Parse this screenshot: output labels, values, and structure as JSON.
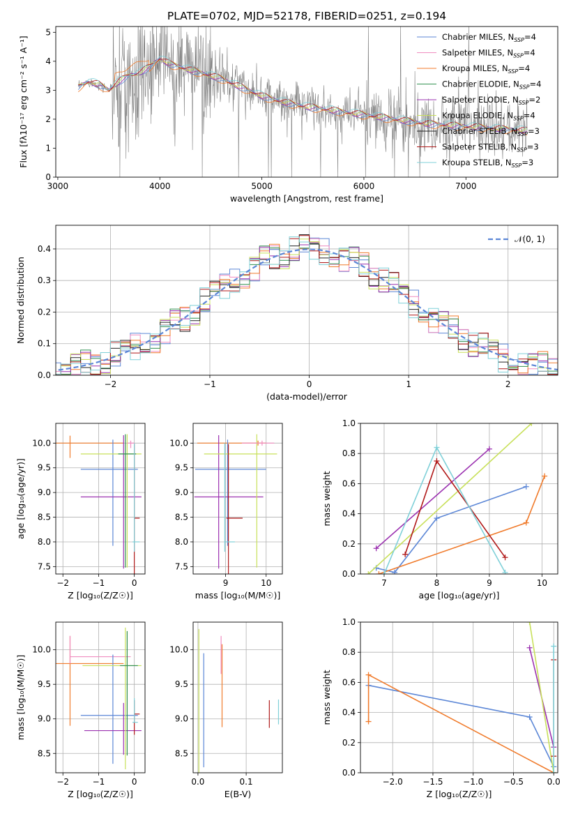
{
  "title": "PLATE=0702, MJD=52178, FIBERID=0251, z=0.194",
  "colors": {
    "chabrier_miles": "#5b86d6",
    "salpeter_miles": "#f08cc0",
    "kroupa_miles": "#f07a2a",
    "chabrier_elodie": "#2f8f4f",
    "salpeter_elodie": "#9b30b0",
    "kroupa_elodie": "#c8e05a",
    "chabrier_stelib": "#222222",
    "salpeter_stelib": "#b01818",
    "kroupa_stelib": "#7fd0d8",
    "data": "#808080"
  },
  "chart_data": [
    {
      "id": "spectrum",
      "type": "line",
      "xlabel": "wavelength [Angstrom, rest frame]",
      "ylabel": "Flux [fλ10⁻¹⁷ erg cm⁻² s⁻¹ A⁻¹]",
      "xlim": [
        2980,
        7900
      ],
      "ylim": [
        0,
        5.2
      ],
      "xticks": [
        3000,
        4000,
        5000,
        6000,
        7000
      ],
      "yticks": [
        0,
        1,
        2,
        3,
        4,
        5
      ],
      "legend_position": "top-right",
      "legend": [
        {
          "key": "chabrier_miles",
          "label": "Chabrier MILES, N",
          "sub": "SSP",
          "suffix": "=4"
        },
        {
          "key": "salpeter_miles",
          "label": "Salpeter MILES, N",
          "sub": "SSP",
          "suffix": "=4"
        },
        {
          "key": "kroupa_miles",
          "label": "Kroupa MILES, N",
          "sub": "SSP",
          "suffix": "=4"
        },
        {
          "key": "chabrier_elodie",
          "label": "Chabrier ELODIE, N",
          "sub": "SSP",
          "suffix": "=4"
        },
        {
          "key": "salpeter_elodie",
          "label": "Salpeter ELODIE, N",
          "sub": "SSP",
          "suffix": "=2"
        },
        {
          "key": "kroupa_elodie",
          "label": "Kroupa ELODIE, N",
          "sub": "SSP",
          "suffix": "=4"
        },
        {
          "key": "chabrier_stelib",
          "label": "Chabrier STELIB, N",
          "sub": "SSP",
          "suffix": "=3"
        },
        {
          "key": "salpeter_stelib",
          "label": "Salpeter STELIB, N",
          "sub": "SSP",
          "suffix": "=3"
        },
        {
          "key": "kroupa_stelib",
          "label": "Kroupa STELIB, N",
          "sub": "SSP",
          "suffix": "=3"
        }
      ],
      "continuum": [
        [
          3200,
          3.1
        ],
        [
          3300,
          3.3
        ],
        [
          3400,
          3.2
        ],
        [
          3500,
          3.0
        ],
        [
          3600,
          3.3
        ],
        [
          3700,
          3.5
        ],
        [
          3800,
          3.6
        ],
        [
          3900,
          3.8
        ],
        [
          4000,
          4.1
        ],
        [
          4100,
          3.9
        ],
        [
          4200,
          3.8
        ],
        [
          4400,
          3.6
        ],
        [
          4600,
          3.4
        ],
        [
          4800,
          3.1
        ],
        [
          5000,
          2.8
        ],
        [
          5200,
          2.6
        ],
        [
          5400,
          2.45
        ],
        [
          5600,
          2.35
        ],
        [
          5800,
          2.25
        ],
        [
          6000,
          2.15
        ],
        [
          6200,
          2.05
        ],
        [
          6400,
          1.95
        ],
        [
          6600,
          1.85
        ],
        [
          6800,
          1.8
        ],
        [
          7000,
          1.75
        ],
        [
          7200,
          1.7
        ],
        [
          7400,
          1.65
        ],
        [
          7600,
          1.6
        ]
      ]
    },
    {
      "id": "residuals",
      "type": "histogram",
      "xlabel": "(data-model)/error",
      "ylabel": "Normed distribution",
      "xlim": [
        -2.55,
        2.5
      ],
      "ylim": [
        0,
        0.475
      ],
      "xticks": [
        -2,
        -1,
        0,
        1,
        2
      ],
      "yticks": [
        0.0,
        0.1,
        0.2,
        0.3,
        0.4
      ],
      "legend_position": "top-right",
      "gaussian_label": "𝒩(0, 1)",
      "bin_width": 0.1
    },
    {
      "id": "age_vs_Z",
      "type": "errorbar",
      "xlabel": "Z [log₁₀(Z/Z☉)]",
      "ylabel": "age  [log₁₀(age/yr)]",
      "xlim": [
        -2.2,
        0.3
      ],
      "ylim": [
        7.35,
        10.4
      ],
      "xticks": [
        -2,
        -1,
        0
      ],
      "yticks": [
        7.5,
        8.0,
        8.5,
        9.0,
        9.5,
        10.0
      ],
      "points": [
        {
          "key": "kroupa_miles",
          "x": -1.8,
          "xerr": [
            0.5,
            1.5
          ],
          "y": 10.0,
          "yerr": [
            0.3,
            0.15
          ]
        },
        {
          "key": "chabrier_miles",
          "x": -0.6,
          "xerr": [
            0.9,
            0.7
          ],
          "y": 9.47,
          "yerr": [
            1.55,
            0.6
          ]
        },
        {
          "key": "salpeter_elodie",
          "x": -0.3,
          "xerr": [
            1.2,
            0.5
          ],
          "y": 8.91,
          "yerr": [
            1.45,
            1.25
          ]
        },
        {
          "key": "kroupa_elodie",
          "x": -0.2,
          "xerr": [
            1.3,
            0.4
          ],
          "y": 9.78,
          "yerr": [
            2.3,
            0.4
          ]
        },
        {
          "key": "chabrier_elodie",
          "x": -0.25,
          "xerr": [
            0.2,
            0.3
          ],
          "y": 9.78,
          "yerr": [
            2.3,
            0.4
          ]
        },
        {
          "key": "salpeter_stelib",
          "x": 0.0,
          "xerr": [
            0.0,
            0.15
          ],
          "y": 8.48,
          "yerr": [
            1.5,
            1.5
          ]
        },
        {
          "key": "kroupa_stelib",
          "x": 0.0,
          "xerr": [
            0.05,
            0.15
          ],
          "y": 8.0,
          "yerr": [
            0.2,
            2.0
          ]
        },
        {
          "key": "salpeter_miles",
          "x": -0.1,
          "xerr": [
            0.1,
            0.1
          ],
          "y": 10.0,
          "yerr": [
            0.1,
            0.05
          ]
        }
      ]
    },
    {
      "id": "age_vs_mass",
      "type": "errorbar",
      "xlabel": "mass [log₁₀(M/M☉)]",
      "ylabel": "",
      "xlim": [
        8.2,
        10.4
      ],
      "ylim": [
        7.35,
        10.4
      ],
      "xticks": [
        9,
        10
      ],
      "yticks": [
        7.5,
        8.0,
        8.5,
        9.0,
        9.5,
        10.0
      ],
      "points": [
        {
          "key": "kroupa_miles",
          "x": 9.8,
          "xerr": [
            1.5,
            0.2
          ],
          "y": 10.0,
          "yerr": [
            0.05,
            0.05
          ]
        },
        {
          "key": "chabrier_miles",
          "x": 9.05,
          "xerr": [
            0.8,
            0.95
          ],
          "y": 9.47,
          "yerr": [
            1.55,
            0.6
          ]
        },
        {
          "key": "salpeter_elodie",
          "x": 8.83,
          "xerr": [
            0.6,
            1.1
          ],
          "y": 8.91,
          "yerr": [
            1.45,
            1.25
          ]
        },
        {
          "key": "kroupa_elodie",
          "x": 9.77,
          "xerr": [
            1.3,
            0.5
          ],
          "y": 9.78,
          "yerr": [
            2.3,
            0.4
          ]
        },
        {
          "key": "salpeter_stelib",
          "x": 9.07,
          "xerr": [
            0.05,
            0.35
          ],
          "y": 8.48,
          "yerr": [
            1.5,
            1.5
          ]
        },
        {
          "key": "kroupa_stelib",
          "x": 8.98,
          "xerr": [
            0.0,
            0.25
          ],
          "y": 8.0,
          "yerr": [
            0.2,
            2.0
          ]
        },
        {
          "key": "salpeter_miles",
          "x": 9.9,
          "xerr": [
            0.5,
            0.3
          ],
          "y": 10.0,
          "yerr": [
            0.05,
            0.05
          ]
        }
      ]
    },
    {
      "id": "weight_vs_age",
      "type": "line",
      "xlabel": "age  [log₁₀(age/yr)]",
      "ylabel": "mass weight",
      "xlim": [
        6.55,
        10.3
      ],
      "ylim": [
        0,
        1.0
      ],
      "xticks": [
        7,
        8,
        9,
        10
      ],
      "yticks": [
        0.0,
        0.2,
        0.4,
        0.6,
        0.8,
        1.0
      ],
      "series": [
        {
          "key": "chabrier_miles",
          "x": [
            6.85,
            7.2,
            8.0,
            9.7
          ],
          "y": [
            0.04,
            0.01,
            0.37,
            0.58
          ]
        },
        {
          "key": "kroupa_miles",
          "x": [
            6.9,
            9.7,
            10.05
          ],
          "y": [
            0.0,
            0.34,
            0.65
          ]
        },
        {
          "key": "salpeter_elodie",
          "x": [
            6.85,
            9.0
          ],
          "y": [
            0.17,
            0.83
          ]
        },
        {
          "key": "kroupa_elodie",
          "x": [
            6.7,
            9.8
          ],
          "y": [
            0.0,
            1.0
          ]
        },
        {
          "key": "salpeter_stelib",
          "x": [
            7.4,
            8.0,
            9.3
          ],
          "y": [
            0.13,
            0.75,
            0.11
          ]
        },
        {
          "key": "kroupa_stelib",
          "x": [
            7.0,
            8.0,
            9.3
          ],
          "y": [
            0.0,
            0.84,
            0.01
          ]
        }
      ]
    },
    {
      "id": "mass_vs_Z",
      "type": "errorbar",
      "xlabel": "Z [log₁₀(Z/Z☉)]",
      "ylabel": "mass [log₁₀(M/M☉)]",
      "xlim": [
        -2.2,
        0.3
      ],
      "ylim": [
        8.22,
        10.4
      ],
      "xticks": [
        -2,
        -1,
        0
      ],
      "yticks": [
        8.5,
        9.0,
        9.5,
        10.0
      ],
      "points": [
        {
          "key": "kroupa_miles",
          "x": -1.8,
          "xerr": [
            0.5,
            1.5
          ],
          "y": 9.8,
          "yerr": [
            0.9,
            0.4
          ]
        },
        {
          "key": "salpeter_miles",
          "x": -1.8,
          "xerr": [
            0.0,
            1.7
          ],
          "y": 9.9,
          "yerr": [
            0.1,
            0.3
          ]
        },
        {
          "key": "chabrier_miles",
          "x": -0.6,
          "xerr": [
            0.9,
            0.7
          ],
          "y": 9.05,
          "yerr": [
            0.7,
            0.88
          ]
        },
        {
          "key": "salpeter_elodie",
          "x": -0.3,
          "xerr": [
            1.1,
            0.5
          ],
          "y": 8.83,
          "yerr": [
            0.35,
            0.4
          ]
        },
        {
          "key": "kroupa_elodie",
          "x": -0.25,
          "xerr": [
            1.2,
            0.45
          ],
          "y": 9.77,
          "yerr": [
            1.5,
            0.55
          ]
        },
        {
          "key": "chabrier_elodie",
          "x": -0.2,
          "xerr": [
            0.2,
            0.3
          ],
          "y": 9.77,
          "yerr": [
            1.3,
            0.5
          ]
        },
        {
          "key": "salpeter_stelib",
          "x": 0.0,
          "xerr": [
            0.0,
            0.15
          ],
          "y": 9.07,
          "yerr": [
            0.3,
            0.2
          ]
        },
        {
          "key": "kroupa_stelib",
          "x": 0.0,
          "xerr": [
            0.05,
            0.1
          ],
          "y": 8.95,
          "yerr": [
            0.0,
            0.35
          ]
        }
      ]
    },
    {
      "id": "mass_vs_EBV",
      "type": "errorbar",
      "xlabel": "E(B-V)",
      "ylabel": "",
      "xlim": [
        -0.01,
        0.175
      ],
      "ylim": [
        8.22,
        10.4
      ],
      "xticks": [
        0.0,
        0.1
      ],
      "yticks": [
        8.5,
        9.0,
        9.5,
        10.0
      ],
      "points": [
        {
          "key": "kroupa_elodie",
          "x": 0.002,
          "xerr": [
            0,
            0
          ],
          "y": 9.5,
          "yerr": [
            1.3,
            0.8
          ]
        },
        {
          "key": "chabrier_miles",
          "x": 0.012,
          "xerr": [
            0,
            0
          ],
          "y": 9.1,
          "yerr": [
            0.8,
            0.85
          ]
        },
        {
          "key": "salpeter_miles",
          "x": 0.048,
          "xerr": [
            0,
            0
          ],
          "y": 9.9,
          "yerr": [
            0.25,
            0.3
          ]
        },
        {
          "key": "kroupa_miles",
          "x": 0.05,
          "xerr": [
            0,
            0
          ],
          "y": 9.48,
          "yerr": [
            0.6,
            0.6
          ]
        },
        {
          "key": "salpeter_stelib",
          "x": 0.148,
          "xerr": [
            0,
            0
          ],
          "y": 9.07,
          "yerr": [
            0.2,
            0.2
          ]
        },
        {
          "key": "kroupa_stelib",
          "x": 0.167,
          "xerr": [
            0,
            0
          ],
          "y": 9.1,
          "yerr": [
            0.18,
            0.18
          ]
        }
      ]
    },
    {
      "id": "weight_vs_Z",
      "type": "line",
      "xlabel": "Z [log₁₀(Z/Z☉)]",
      "ylabel": "mass weight",
      "xlim": [
        -2.4,
        0.05
      ],
      "ylim": [
        0,
        1.0
      ],
      "xticks": [
        -2.0,
        -1.5,
        -1.0,
        -0.5,
        0.0
      ],
      "yticks": [
        0.0,
        0.2,
        0.4,
        0.6,
        0.8,
        1.0
      ],
      "series": [
        {
          "key": "chabrier_miles",
          "x": [
            -2.3,
            -0.3,
            0.0
          ],
          "y": [
            0.58,
            0.37,
            0.04
          ]
        },
        {
          "key": "kroupa_miles",
          "x": [
            -2.3,
            -2.3,
            0.0,
            0.0
          ],
          "y": [
            0.34,
            0.65,
            0.0,
            0.0
          ]
        },
        {
          "key": "salpeter_elodie",
          "x": [
            -0.3,
            0.0
          ],
          "y": [
            0.83,
            0.17
          ]
        },
        {
          "key": "kroupa_elodie",
          "x": [
            -0.3,
            0.0
          ],
          "y": [
            1.0,
            0.0
          ]
        },
        {
          "key": "salpeter_stelib",
          "x": [
            0.0,
            0.0
          ],
          "y": [
            0.75,
            0.11
          ]
        },
        {
          "key": "kroupa_stelib",
          "x": [
            0.0,
            0.0
          ],
          "y": [
            0.84,
            0.0
          ]
        }
      ]
    }
  ]
}
